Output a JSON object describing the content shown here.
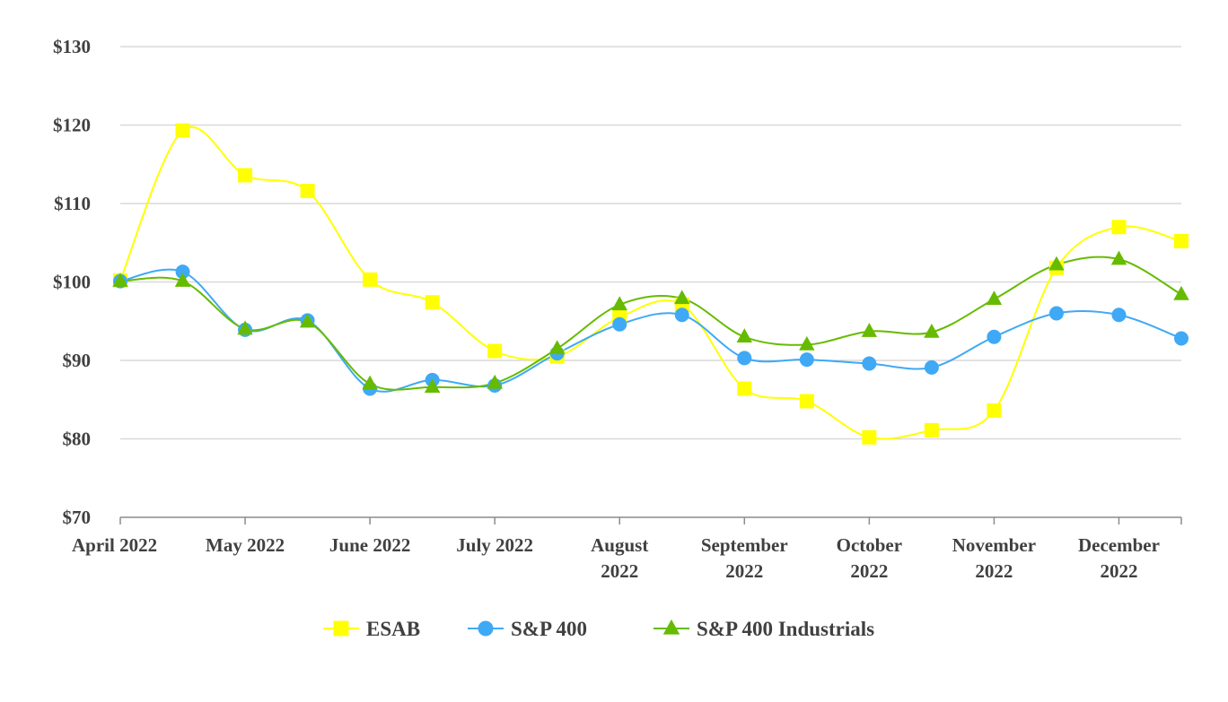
{
  "chart_data": {
    "type": "line",
    "title": "",
    "xlabel": "",
    "ylabel": "",
    "x_points": 18,
    "x_tick_labels": [
      {
        "index": 0,
        "lines": [
          "April 2022"
        ]
      },
      {
        "index": 2,
        "lines": [
          "May 2022"
        ]
      },
      {
        "index": 4,
        "lines": [
          "June 2022"
        ]
      },
      {
        "index": 6,
        "lines": [
          "July 2022"
        ]
      },
      {
        "index": 8,
        "lines": [
          "August",
          "2022"
        ]
      },
      {
        "index": 10,
        "lines": [
          "September",
          "2022"
        ]
      },
      {
        "index": 12,
        "lines": [
          "October",
          "2022"
        ]
      },
      {
        "index": 14,
        "lines": [
          "November",
          "2022"
        ]
      },
      {
        "index": 16,
        "lines": [
          "December",
          "2022"
        ]
      }
    ],
    "y_ticks": [
      70,
      80,
      90,
      100,
      110,
      120,
      130
    ],
    "y_tick_labels": [
      "$70",
      "$80",
      "$90",
      "$100",
      "$110",
      "$120",
      "$130"
    ],
    "ylim": [
      70,
      130
    ],
    "grid": true,
    "legend_position": "bottom-center",
    "series": [
      {
        "name": "ESAB",
        "color": "#FFFF00",
        "marker": "square",
        "values": [
          100.2,
          119.3,
          113.6,
          111.6,
          100.3,
          97.4,
          91.2,
          90.5,
          95.5,
          97.1,
          86.4,
          84.8,
          80.2,
          81.1,
          83.6,
          101.8,
          107.0,
          105.2
        ]
      },
      {
        "name": "S&P 400",
        "color": "#3FA9F5",
        "marker": "circle",
        "values": [
          100.1,
          101.3,
          93.9,
          95.1,
          86.4,
          87.5,
          86.8,
          90.9,
          94.6,
          95.8,
          90.3,
          90.1,
          89.6,
          89.1,
          93.0,
          96.0,
          95.8,
          92.8
        ]
      },
      {
        "name": "S&P 400 Industrials",
        "color": "#66BB00",
        "marker": "triangle",
        "values": [
          100.1,
          100.1,
          94.0,
          94.9,
          87.0,
          86.6,
          87.1,
          91.5,
          97.1,
          97.9,
          93.0,
          92.0,
          93.7,
          93.6,
          97.8,
          102.2,
          102.9,
          98.4
        ]
      }
    ]
  }
}
